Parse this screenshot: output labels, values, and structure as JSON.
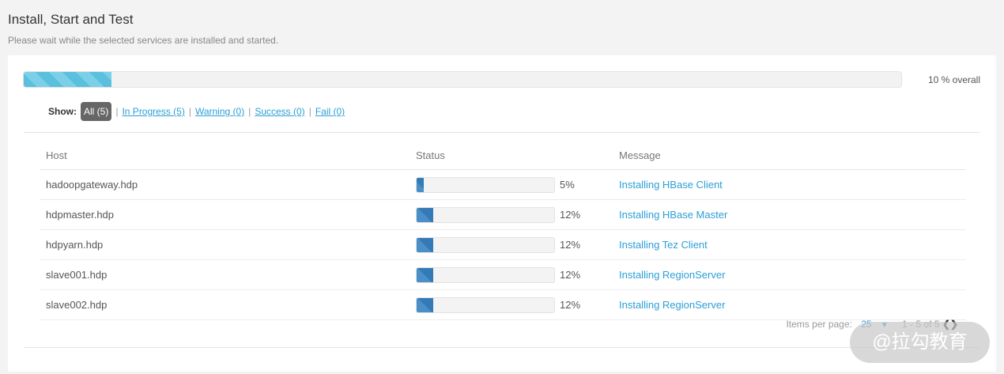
{
  "header": {
    "title": "Install, Start and Test",
    "subtitle": "Please wait while the selected services are installed and started."
  },
  "overall": {
    "percent": 10,
    "label": "10 % overall"
  },
  "filter": {
    "label": "Show:",
    "items": [
      "All (5)",
      "In Progress (5)",
      "Warning (0)",
      "Success (0)",
      "Fail (0)"
    ]
  },
  "table": {
    "columns": [
      "Host",
      "Status",
      "Message"
    ],
    "rows": [
      {
        "host": "hadoopgateway.hdp",
        "percent": 5,
        "pct_label": "5%",
        "message": "Installing HBase Client"
      },
      {
        "host": "hdpmaster.hdp",
        "percent": 12,
        "pct_label": "12%",
        "message": "Installing HBase Master"
      },
      {
        "host": "hdpyarn.hdp",
        "percent": 12,
        "pct_label": "12%",
        "message": "Installing Tez Client"
      },
      {
        "host": "slave001.hdp",
        "percent": 12,
        "pct_label": "12%",
        "message": "Installing RegionServer"
      },
      {
        "host": "slave002.hdp",
        "percent": 12,
        "pct_label": "12%",
        "message": "Installing RegionServer"
      }
    ]
  },
  "pager": {
    "label": "Items per page:",
    "per_page": "25",
    "range": "1 - 5 of 5"
  },
  "watermark": "@拉勾教育"
}
